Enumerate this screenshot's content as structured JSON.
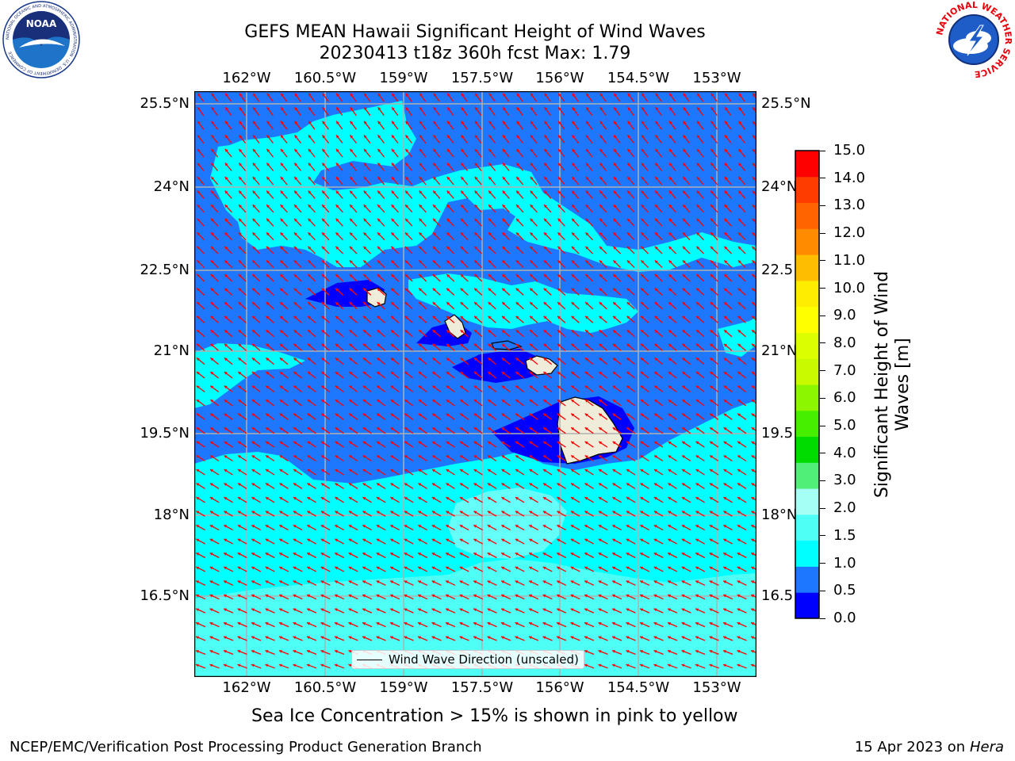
{
  "title": {
    "line1": "GEFS MEAN Hawaii Significant Height of Wind Waves",
    "line2": "20230413 t18z 360h fcst   Max: 1.79"
  },
  "map": {
    "lon_ticks": [
      "162°W",
      "160.5°W",
      "159°W",
      "157.5°W",
      "156°W",
      "154.5°W",
      "153°W"
    ],
    "lat_ticks_left": [
      "25.5°N",
      "24°N",
      "22.5°N",
      "21°N",
      "19.5°N",
      "18°N",
      "16.5°N"
    ],
    "lat_ticks_right": [
      "25.5°N",
      "24°N",
      "22.5",
      "21°N",
      "19.5",
      "18°N",
      "16.5"
    ],
    "legend_label": "Wind Wave Direction (unscaled)",
    "arrow_color": "#ff0000",
    "land_color": "#efecd9"
  },
  "colorbar": {
    "label_line1": "Significant Height of Wind",
    "label_line2": "Waves [m]",
    "ticks": [
      "15.0",
      "14.0",
      "13.0",
      "12.0",
      "11.0",
      "10.0",
      "9.0",
      "8.0",
      "7.0",
      "6.0",
      "5.0",
      "4.0",
      "3.0",
      "2.0",
      "1.5",
      "1.0",
      "0.5",
      "0.0"
    ],
    "colors": [
      "#0000ff",
      "#1e78ff",
      "#00ffff",
      "#4dfff4",
      "#a6fff5",
      "#50f078",
      "#00dc00",
      "#46ee00",
      "#8cf500",
      "#c8fa00",
      "#dcff00",
      "#ffff00",
      "#ffed00",
      "#ffbd00",
      "#ff8c00",
      "#ff6400",
      "#ff3c00",
      "#ff0000"
    ]
  },
  "logos": {
    "noaa_text": "NOAA",
    "noaa_ring": "NATIONAL OCEANIC AND ATMOSPHERIC ADMINISTRATION · U.S. DEPARTMENT OF COMMERCE",
    "nws_ring": "NATIONAL WEATHER SERVICE"
  },
  "caption": "Sea Ice Concentration > 15% is shown in pink to yellow",
  "footer": {
    "left": "NCEP/EMC/Verification Post Processing Product Generation Branch",
    "right_prefix": "15 Apr 2023 on ",
    "right_host": "Hera"
  }
}
